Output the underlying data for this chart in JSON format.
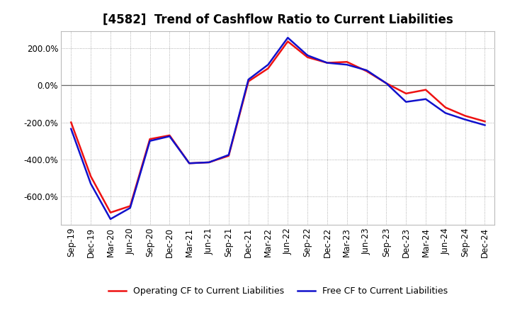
{
  "title": "[4582]  Trend of Cashflow Ratio to Current Liabilities",
  "x_labels": [
    "Sep-19",
    "Dec-19",
    "Mar-20",
    "Jun-20",
    "Sep-20",
    "Dec-20",
    "Mar-21",
    "Jun-21",
    "Sep-21",
    "Dec-21",
    "Mar-22",
    "Jun-22",
    "Sep-22",
    "Dec-22",
    "Mar-23",
    "Jun-23",
    "Sep-23",
    "Dec-23",
    "Mar-24",
    "Jun-24",
    "Sep-24",
    "Dec-24"
  ],
  "operating_cf": [
    -200,
    -490,
    -685,
    -650,
    -290,
    -270,
    -420,
    -415,
    -380,
    20,
    90,
    235,
    150,
    120,
    125,
    75,
    10,
    -45,
    -25,
    -120,
    -165,
    -195
  ],
  "free_cf": [
    -235,
    -530,
    -720,
    -660,
    -300,
    -275,
    -420,
    -415,
    -375,
    30,
    110,
    255,
    160,
    120,
    110,
    80,
    10,
    -90,
    -75,
    -150,
    -185,
    -215
  ],
  "operating_cf_color": "#ee1111",
  "free_cf_color": "#1111cc",
  "background_color": "#ffffff",
  "plot_bg_color": "#ffffff",
  "grid_color": "#999999",
  "ytick_values": [
    -600,
    -400,
    -200,
    0,
    200
  ],
  "ytick_labels": [
    "-600.0%",
    "-400.0%",
    "-200.0%",
    "0.0%",
    "200.0%"
  ],
  "ylim": [
    -750,
    290
  ],
  "legend_labels": [
    "Operating CF to Current Liabilities",
    "Free CF to Current Liabilities"
  ],
  "line_width": 1.8,
  "title_fontsize": 12,
  "tick_fontsize": 8.5,
  "legend_fontsize": 9
}
